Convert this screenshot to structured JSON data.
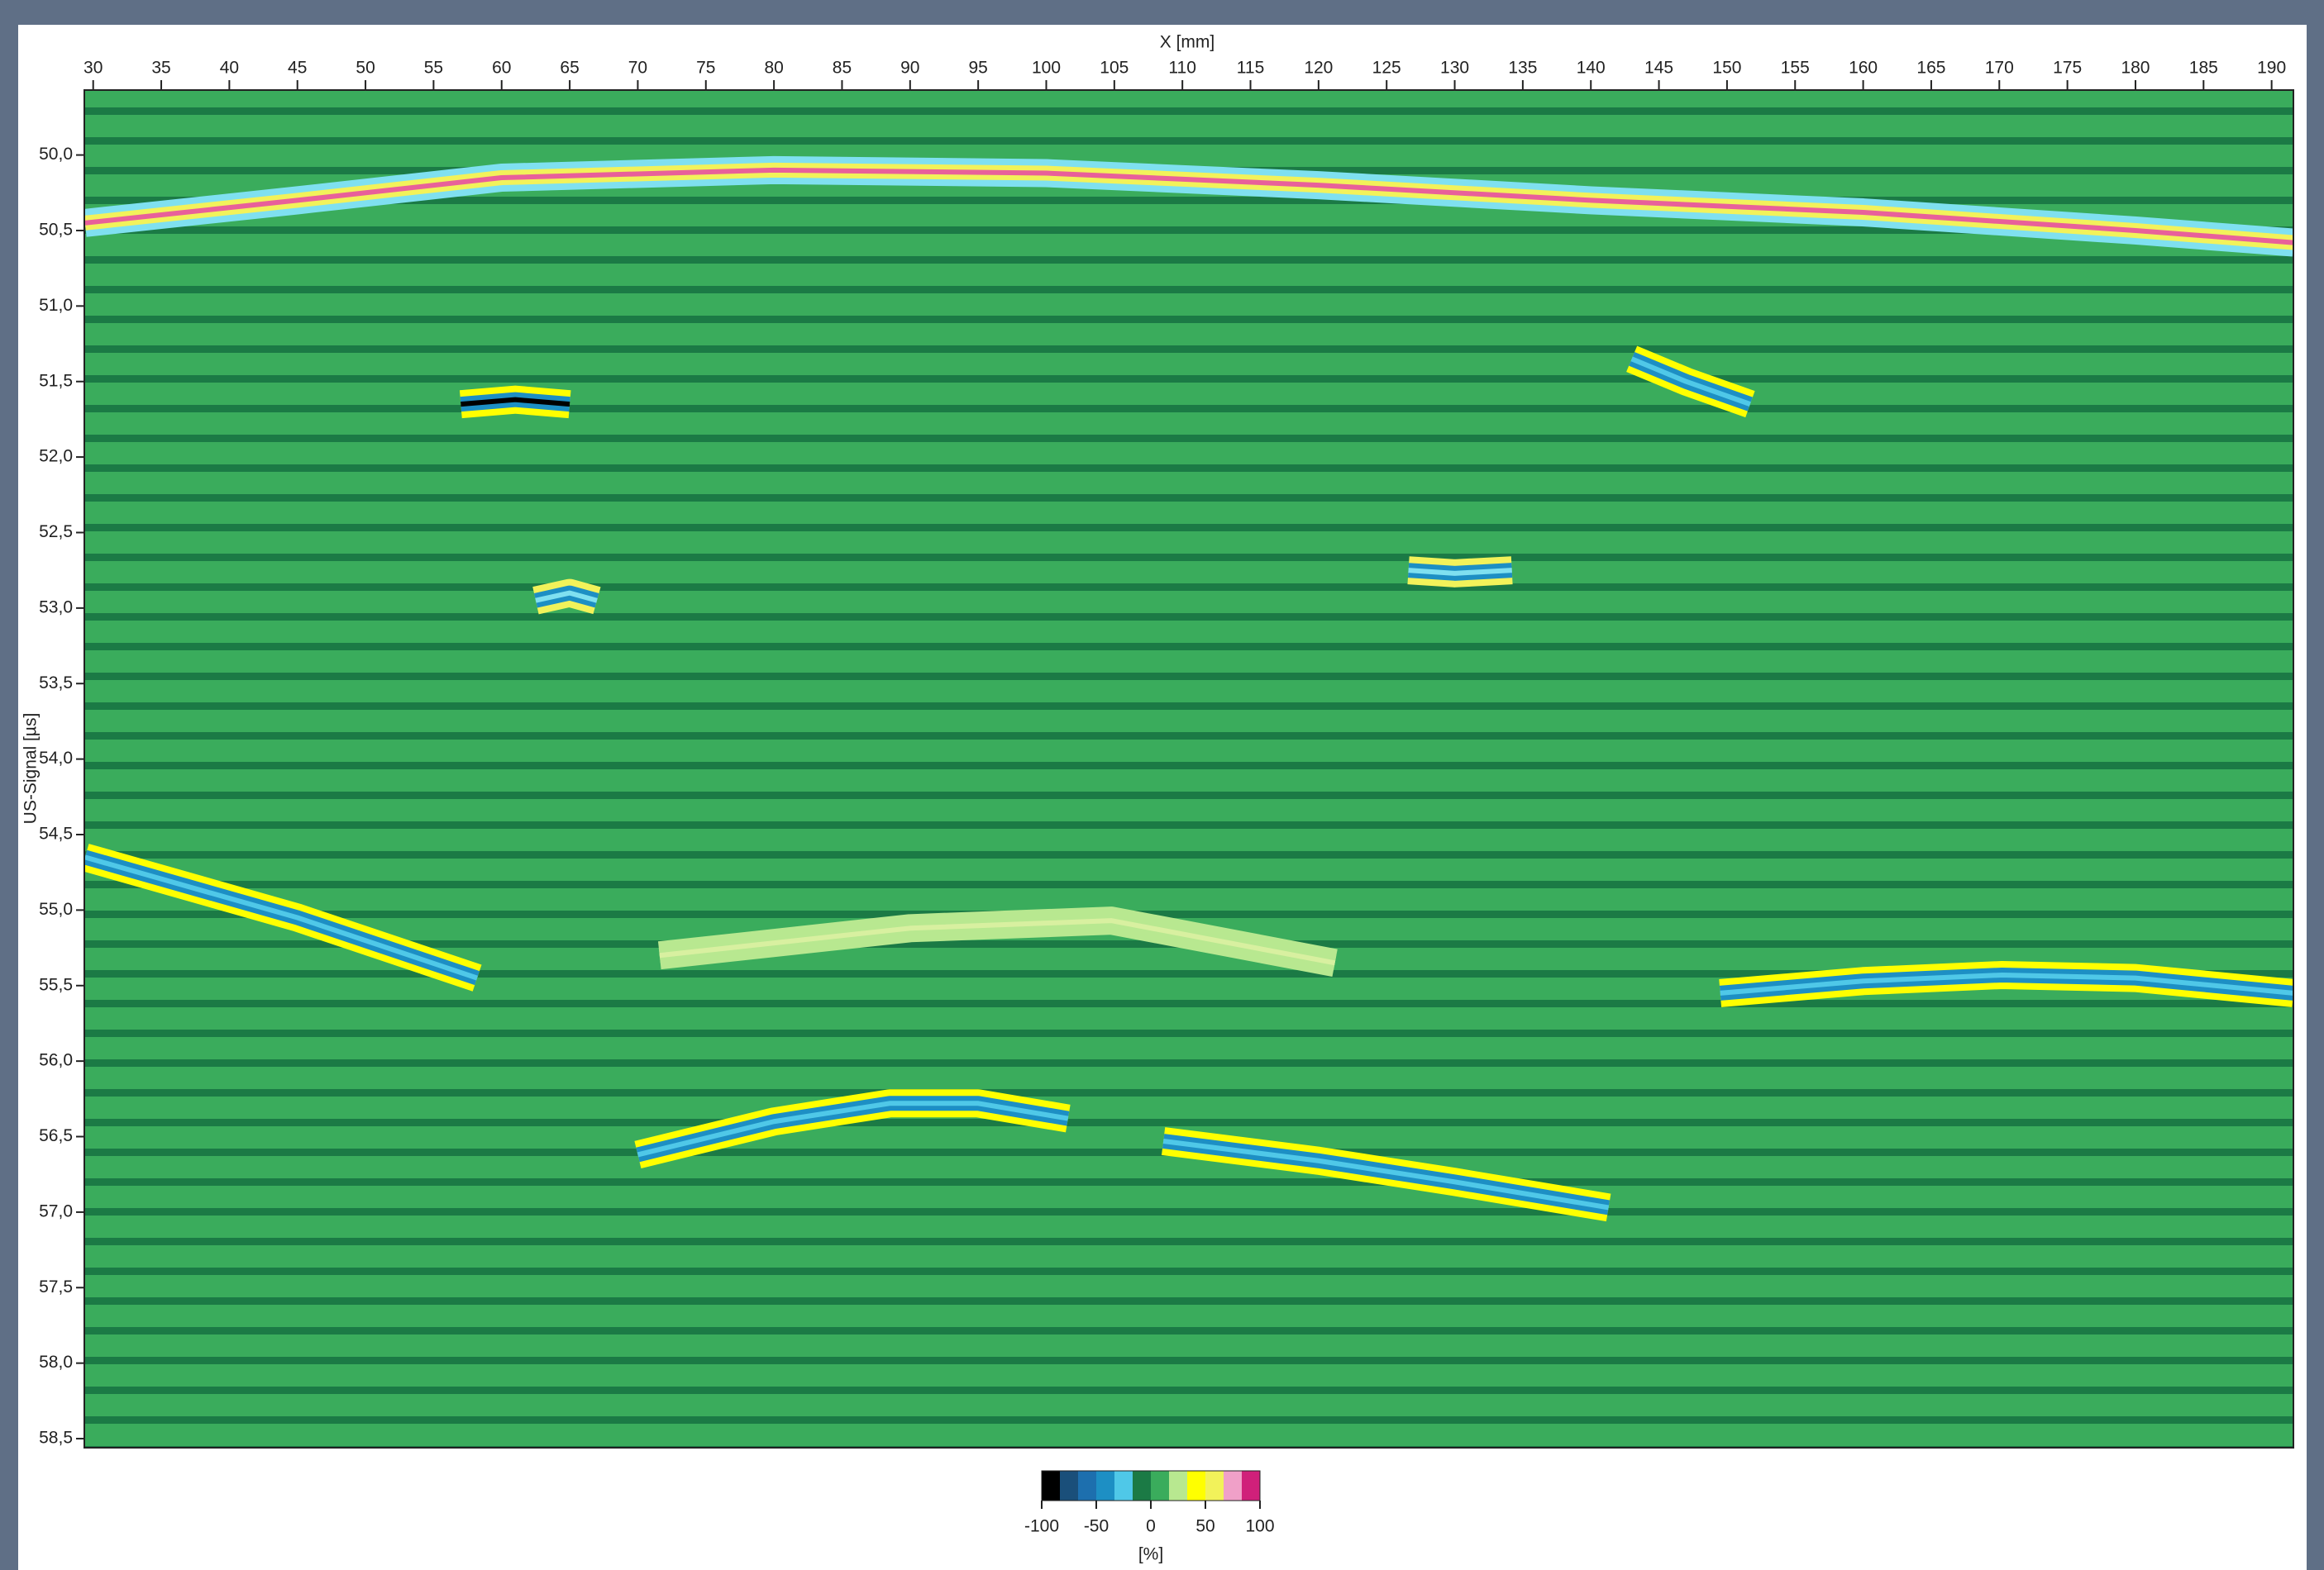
{
  "chart_data": {
    "type": "bscan",
    "xlabel": "X [mm]",
    "ylabel": "US-Signal [µs]",
    "xlim": [
      29.35,
      191.6
    ],
    "ylim": [
      49.57,
      58.56
    ],
    "y_inverted": true,
    "xticks": [
      30,
      35,
      40,
      45,
      50,
      55,
      60,
      65,
      70,
      75,
      80,
      85,
      90,
      95,
      100,
      105,
      110,
      115,
      120,
      125,
      130,
      135,
      140,
      145,
      150,
      155,
      160,
      165,
      170,
      175,
      180,
      185,
      190
    ],
    "yticks": [
      {
        "value": 50,
        "label": "50,0"
      },
      {
        "value": 50.5,
        "label": "50,5"
      },
      {
        "value": 51,
        "label": "51,0"
      },
      {
        "value": 51.5,
        "label": "51,5"
      },
      {
        "value": 52,
        "label": "52,0"
      },
      {
        "value": 52.5,
        "label": "52,5"
      },
      {
        "value": 53,
        "label": "53,0"
      },
      {
        "value": 53.5,
        "label": "53,5"
      },
      {
        "value": 54,
        "label": "54,0"
      },
      {
        "value": 54.5,
        "label": "54,5"
      },
      {
        "value": 55,
        "label": "55,0"
      },
      {
        "value": 55.5,
        "label": "55,5"
      },
      {
        "value": 56,
        "label": "56,0"
      },
      {
        "value": 56.5,
        "label": "56,5"
      },
      {
        "value": 57,
        "label": "57,0"
      },
      {
        "value": 57.5,
        "label": "57,5"
      },
      {
        "value": 58,
        "label": "58,0"
      },
      {
        "value": 58.5,
        "label": "58,5"
      }
    ],
    "background_colors": [
      "#3aac5c",
      "#1b7a45"
    ],
    "echoes": [
      {
        "x": [
          29.4,
          45,
          60,
          80,
          100,
          120,
          140,
          160,
          180,
          191.6
        ],
        "y": [
          50.45,
          50.3,
          50.15,
          50.1,
          50.12,
          50.2,
          50.3,
          50.38,
          50.5,
          50.58
        ],
        "colors": [
          "#7fe0f0",
          "#f2f25a",
          "#e8609a"
        ]
      },
      {
        "x": [
          29.4,
          45,
          58.2
        ],
        "y": [
          54.65,
          55.05,
          55.45
        ],
        "colors": [
          "#ffff00",
          "#1d8fc4",
          "#4fc8e8"
        ]
      },
      {
        "x": [
          70,
          80,
          88.5,
          95,
          101.6
        ],
        "y": [
          56.62,
          56.4,
          56.28,
          56.28,
          56.38
        ],
        "colors": [
          "#ffff00",
          "#1d8fc4",
          "#4fc8e8"
        ]
      },
      {
        "x": [
          108.6,
          120,
          130,
          141.3
        ],
        "y": [
          56.53,
          56.66,
          56.8,
          56.97
        ],
        "colors": [
          "#ffff00",
          "#1d8fc4",
          "#4fc8e8"
        ]
      },
      {
        "x": [
          149.5,
          160,
          170.2,
          180,
          191.6
        ],
        "y": [
          55.55,
          55.47,
          55.43,
          55.45,
          55.55
        ],
        "colors": [
          "#ffff00",
          "#1d8fc4",
          "#4fc8e8"
        ]
      },
      {
        "x": [
          71.6,
          90,
          104.8,
          121.2
        ],
        "y": [
          55.3,
          55.12,
          55.07,
          55.35
        ],
        "colors": [
          "#b8e890",
          "#b8e890",
          "#d8f0a0"
        ]
      },
      {
        "x": [
          57,
          61,
          65
        ],
        "y": [
          51.65,
          51.62,
          51.65
        ],
        "colors": [
          "#ffff00",
          "#1d8fc4",
          "#000000"
        ]
      },
      {
        "x": [
          143,
          147,
          151.7
        ],
        "y": [
          51.35,
          51.5,
          51.65
        ],
        "colors": [
          "#ffff00",
          "#1d8fc4",
          "#4fc8e8"
        ]
      },
      {
        "x": [
          126.6,
          130,
          134.2
        ],
        "y": [
          52.75,
          52.77,
          52.75
        ],
        "colors": [
          "#f2f25a",
          "#1d8fc4",
          "#7fe0f0"
        ]
      },
      {
        "x": [
          62.5,
          65,
          67
        ],
        "y": [
          52.95,
          52.9,
          52.95
        ],
        "colors": [
          "#f2f25a",
          "#1d8fc4",
          "#7fe0f0"
        ]
      }
    ],
    "colorbar": {
      "colors": [
        "#000000",
        "#1a4f7a",
        "#1d6fae",
        "#1d8fc4",
        "#4fc8e8",
        "#1b7a45",
        "#3aac5c",
        "#b8e890",
        "#ffff00",
        "#f2f25a",
        "#f0a0c8",
        "#d0207a"
      ],
      "lim": [
        -100,
        100
      ],
      "ticks": [
        -100,
        -50,
        0,
        50,
        100
      ],
      "label": "[%]"
    }
  }
}
